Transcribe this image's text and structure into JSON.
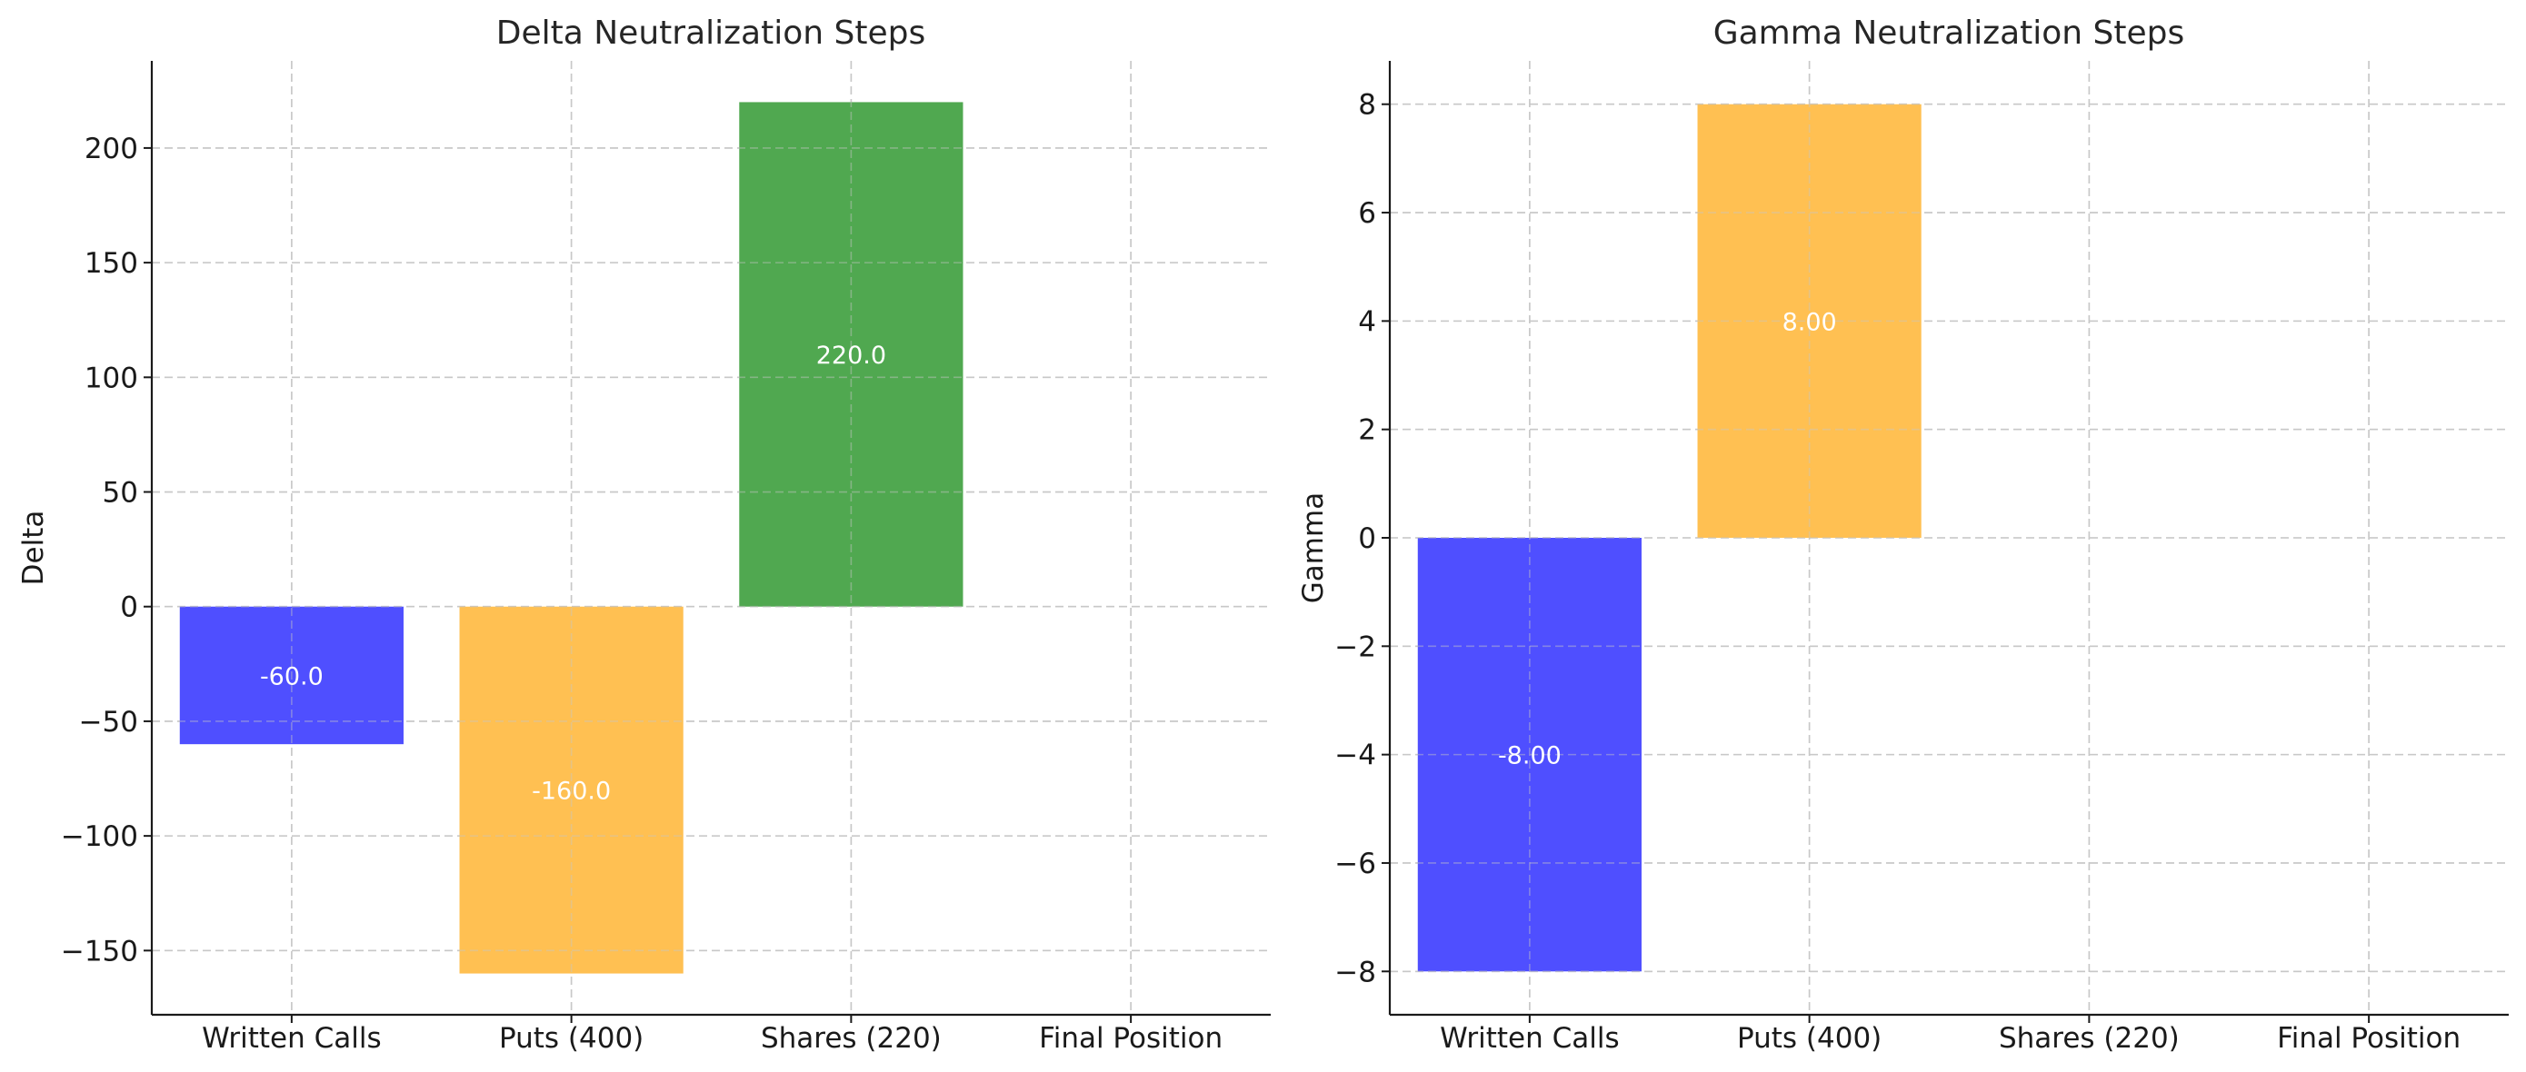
{
  "chart_data": [
    {
      "type": "bar",
      "title": "Delta Neutralization Steps",
      "xlabel": "",
      "ylabel": "Delta",
      "categories": [
        "Written Calls",
        "Puts (400)",
        "Shares (220)",
        "Final Position"
      ],
      "values": [
        -60,
        -160,
        220,
        0
      ],
      "data_labels": [
        "-60.0",
        "-160.0",
        "220.0",
        ""
      ],
      "colors": [
        "#4b4bff",
        "#ffbf4f",
        "#4ca64c",
        "#ffffff"
      ],
      "ylim": [
        -178,
        238
      ],
      "yticks": [
        -150,
        -100,
        -50,
        0,
        50,
        100,
        150,
        200
      ],
      "ytick_labels": [
        "−150",
        "−100",
        "−50",
        "0",
        "50",
        "100",
        "150",
        "200"
      ],
      "grid": true
    },
    {
      "type": "bar",
      "title": "Gamma Neutralization Steps",
      "xlabel": "",
      "ylabel": "Gamma",
      "categories": [
        "Written Calls",
        "Puts (400)",
        "Shares (220)",
        "Final Position"
      ],
      "values": [
        -8,
        8,
        0,
        0
      ],
      "data_labels": [
        "-8.00",
        "8.00",
        "",
        ""
      ],
      "colors": [
        "#4b4bff",
        "#ffbf4f",
        "#4ca64c",
        "#ffffff"
      ],
      "ylim": [
        -8.8,
        8.8
      ],
      "yticks": [
        -8,
        -6,
        -4,
        -2,
        0,
        2,
        4,
        6,
        8
      ],
      "ytick_labels": [
        "−8",
        "−6",
        "−4",
        "−2",
        "0",
        "2",
        "4",
        "6",
        "8"
      ],
      "grid": true
    }
  ]
}
